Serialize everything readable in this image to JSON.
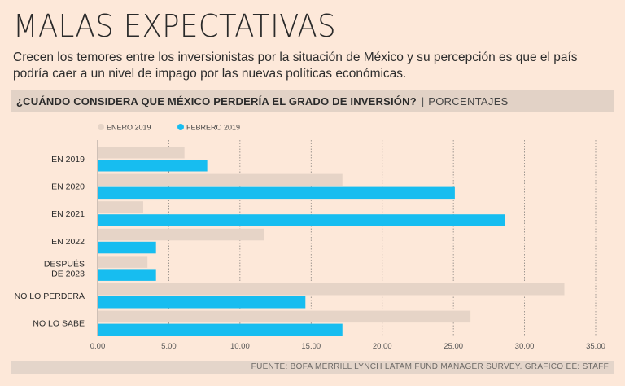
{
  "header": {
    "title": "MALAS EXPECTATIVAS",
    "subtitle": "Crecen los temores entre los inversionistas por la situación de México y su percepción es que el país podría caer a un nivel de impago por las nuevas políticas económicas."
  },
  "question": {
    "text": "¿CUÁNDO CONSIDERA QUE MÉXICO PERDERÍA EL GRADO DE INVERSIÓN?",
    "separator": "|",
    "units": "PORCENTAJES"
  },
  "footer": {
    "source": "FUENTE: BOFA MERRILL LYNCH LATAM FUND MANAGER SURVEY. GRÁFICO EE: STAFF"
  },
  "colors": {
    "background": "#fde8d9",
    "enero": "#e6d4c7",
    "febrero": "#17bdf0",
    "grid": "#8a8580",
    "text": "#2b2b2b"
  },
  "chart_data": {
    "type": "bar",
    "orientation": "horizontal",
    "categories": [
      [
        "EN 2019"
      ],
      [
        "EN 2020"
      ],
      [
        "EN 2021"
      ],
      [
        "EN 2022"
      ],
      [
        "DESPUÉS",
        "DE 2023"
      ],
      [
        "NO LO PERDERÁ"
      ],
      [
        "NO LO SABE"
      ]
    ],
    "series": [
      {
        "name": "ENERO 2019",
        "color": "#e6d4c7",
        "values": [
          6.1,
          17.2,
          3.2,
          11.7,
          3.5,
          32.8,
          26.2
        ]
      },
      {
        "name": "FEBRERO 2019",
        "color": "#17bdf0",
        "values": [
          7.7,
          25.1,
          28.6,
          4.1,
          4.1,
          14.6,
          17.2
        ]
      }
    ],
    "xlim": [
      0,
      35
    ],
    "xticks": [
      "0.00",
      "5.00",
      "10.00",
      "15.00",
      "20.00",
      "25.00",
      "30.00",
      "35.00"
    ],
    "grid": "vertical dashed",
    "legend_position": "top-left"
  }
}
